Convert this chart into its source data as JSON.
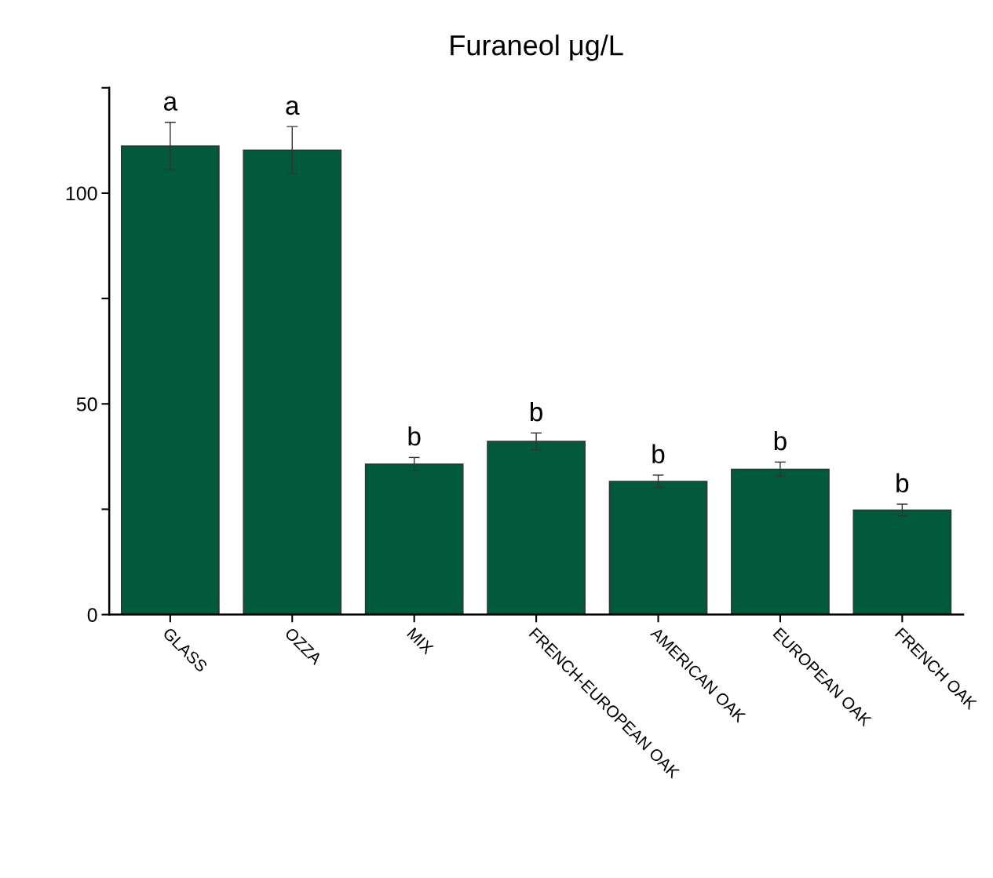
{
  "chart_data": {
    "type": "bar",
    "title": "Furaneol μg/L",
    "categories": [
      "GLASS",
      "OZZA",
      "MIX",
      "FRENCH-EUROPEAN OAK",
      "AMERICAN OAK",
      "EUROPEAN OAK",
      "FRENCH OAK"
    ],
    "values": [
      111.2,
      110.2,
      35.7,
      41.1,
      31.6,
      34.5,
      24.8
    ],
    "errors": [
      5.6,
      5.6,
      1.6,
      2.0,
      1.5,
      1.7,
      1.4
    ],
    "color": "#025a3c",
    "ylim": [
      0,
      125
    ],
    "yticks": [
      0,
      {
        "value": 25,
        "label": null
      },
      50,
      {
        "value": 75,
        "label": null
      },
      100,
      {
        "value": 125,
        "label": null
      }
    ],
    "grid": false,
    "annotations": [
      {
        "text": "a",
        "x": "GLASS",
        "y": 116.8
      },
      {
        "text": "a",
        "x": "OZZA",
        "y": 115.8
      },
      {
        "text": "b",
        "x": "MIX",
        "y": 37.3
      },
      {
        "text": "b",
        "x": "FRENCH-EUROPEAN OAK",
        "y": 43.1
      },
      {
        "text": "b",
        "x": "AMERICAN OAK",
        "y": 33.1
      },
      {
        "text": "b",
        "x": "EUROPEAN OAK",
        "y": 36.2
      },
      {
        "text": "b",
        "x": "FRENCH OAK",
        "y": 26.2
      }
    ]
  }
}
